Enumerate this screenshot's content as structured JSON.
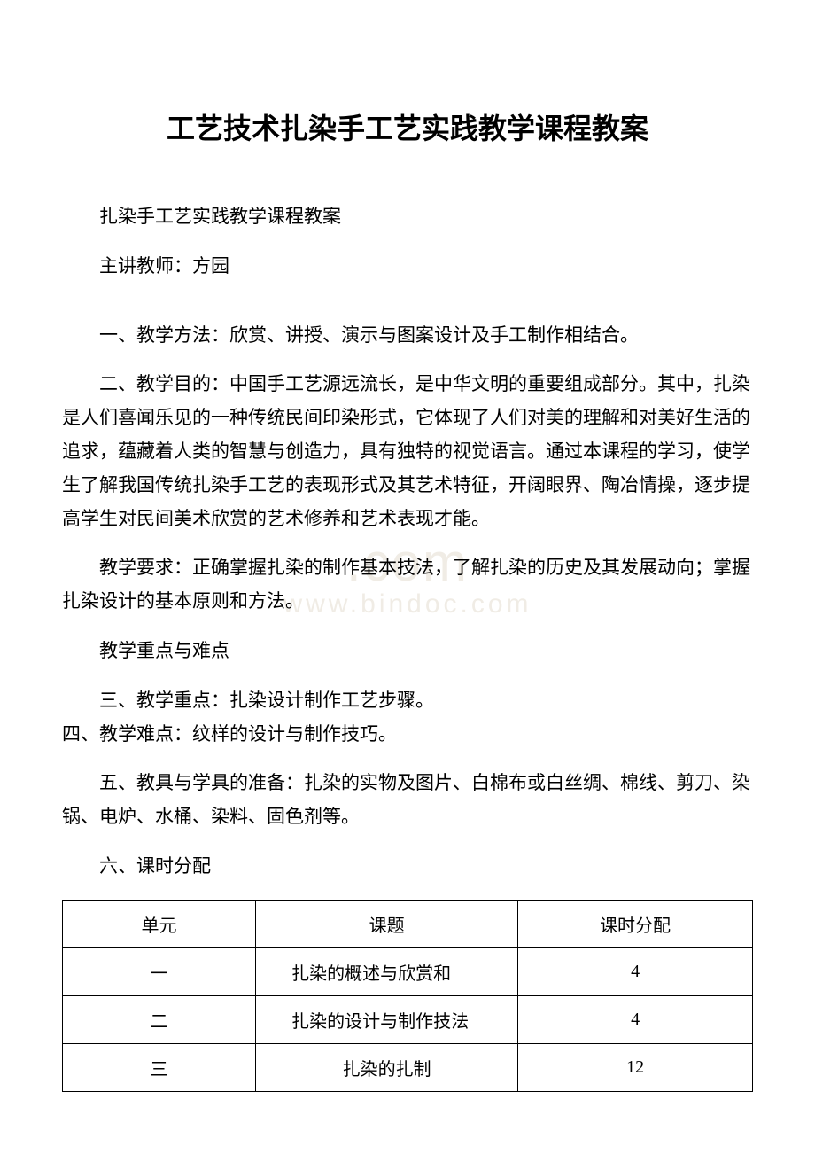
{
  "watermark": {
    "line1": ".com",
    "line2": "www.bindoc.com"
  },
  "title": "工艺技术扎染手工艺实践教学课程教案",
  "subtitle": "扎染手工艺实践教学课程教案",
  "teacher_label": "主讲教师：方园",
  "section1": "一、教学方法：欣赏、讲授、演示与图案设计及手工制作相结合。",
  "section2": "二、教学目的：中国手工艺源远流长，是中华文明的重要组成部分。其中，扎染是人们喜闻乐见的一种传统民间印染形式，它体现了人们对美的理解和对美好生活的追求，蕴藏着人类的智慧与创造力，具有独特的视觉语言。通过本课程的学习，使学生了解我国传统扎染手工艺的表现形式及其艺术特征，开阔眼界、陶冶情操，逐步提高学生对民间美术欣赏的艺术修养和艺术表现才能。",
  "requirement": "教学要求：正确掌握扎染的制作基本技法，了解扎染的历史及其发展动向；掌握扎染设计的基本原则和方法。",
  "keypoints_heading": "教学重点与难点",
  "section3": "三、教学重点：扎染设计制作工艺步骤。",
  "section4": "四、教学难点：纹样的设计与制作技巧。",
  "section5": "五、教具与学具的准备：扎染的实物及图片、白棉布或白丝绸、棉线、剪刀、染锅、电炉、水桶、染料、固色剂等。",
  "section6": "六、课时分配",
  "table": {
    "headers": [
      "单元",
      "课题",
      "课时分配"
    ],
    "rows": [
      [
        "一",
        "扎染的概述与欣赏和",
        "4"
      ],
      [
        "二",
        "扎染的设计与制作技法",
        "4"
      ],
      [
        "三",
        "扎染的扎制",
        "12"
      ]
    ],
    "col_widths": [
      "28%",
      "38%",
      "34%"
    ]
  },
  "colors": {
    "text": "#000000",
    "background": "#ffffff",
    "watermark": "#f0ece5",
    "border": "#000000"
  },
  "fonts": {
    "title_size": 32,
    "body_size": 21,
    "table_size": 20
  }
}
